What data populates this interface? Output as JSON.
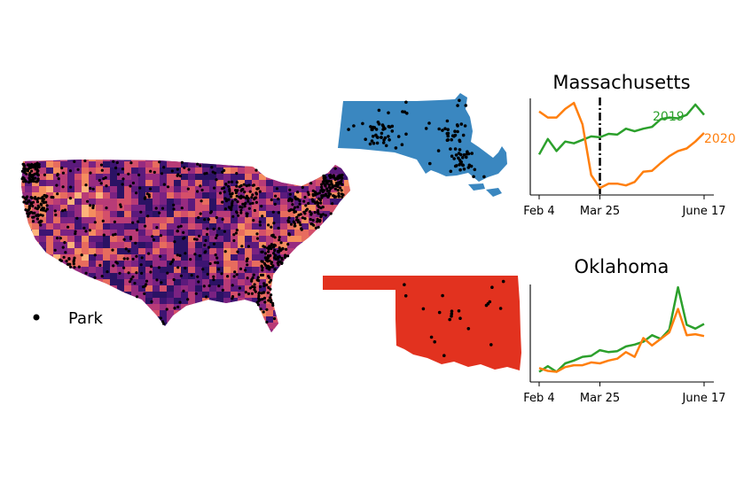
{
  "legend": {
    "label": "Park"
  },
  "colors": {
    "massachusetts_fill": "#3a87c0",
    "oklahoma_fill": "#e2321f",
    "series_2019": "#2ca02c",
    "series_2020": "#ff7f0e",
    "points": "#000000",
    "map_dark": "#2b1264",
    "map_mid": "#b83b77",
    "map_light": "#fdb37a"
  },
  "chart_data": [
    {
      "type": "line",
      "title": "Massachusetts",
      "xlabel": "",
      "ylabel": "",
      "x_ticks": [
        "Feb 4",
        "Mar 25",
        "June 17"
      ],
      "x_tick_weeks": [
        0,
        7,
        19
      ],
      "vline_week": 7,
      "vline_style": "dash-dot",
      "ylim": [
        0,
        100
      ],
      "series": [
        {
          "name": "2019",
          "color": "#2ca02c",
          "values": [
            42,
            60,
            46,
            57,
            55,
            59,
            63,
            62,
            66,
            65,
            72,
            69,
            72,
            74,
            83,
            85,
            84,
            88,
            100,
            88
          ]
        },
        {
          "name": "2020",
          "color": "#ff7f0e",
          "values": [
            92,
            85,
            85,
            95,
            102,
            77,
            18,
            3,
            8,
            8,
            6,
            10,
            22,
            23,
            32,
            40,
            46,
            49,
            57,
            67
          ]
        }
      ]
    },
    {
      "type": "line",
      "title": "Oklahoma",
      "xlabel": "",
      "ylabel": "",
      "x_ticks": [
        "Feb 4",
        "Mar 25",
        "June 17"
      ],
      "x_tick_weeks": [
        0,
        7,
        19
      ],
      "ylim": [
        0,
        100
      ],
      "series": [
        {
          "name": "",
          "color": "#2ca02c",
          "values": [
            8,
            14,
            8,
            17,
            20,
            24,
            25,
            31,
            29,
            30,
            35,
            37,
            40,
            47,
            43,
            53,
            98,
            58,
            54,
            59
          ]
        },
        {
          "name": "",
          "color": "#ff7f0e",
          "values": [
            12,
            9,
            8,
            13,
            15,
            15,
            18,
            17,
            20,
            22,
            29,
            24,
            44,
            36,
            43,
            50,
            75,
            47,
            48,
            46
          ]
        }
      ]
    }
  ]
}
